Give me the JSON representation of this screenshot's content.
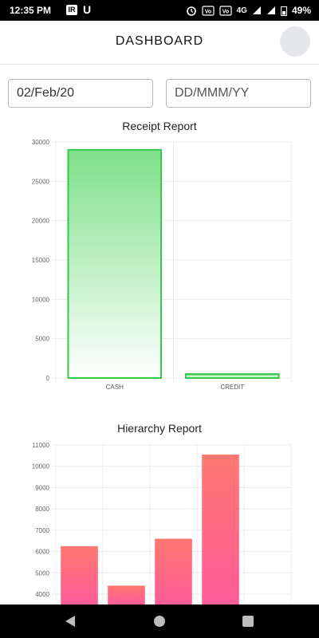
{
  "status_bar": {
    "time": "12:35 PM",
    "app_icon_1": "IR",
    "app_icon_2": "U",
    "indicators": [
      "alarm-icon",
      "vo-lte-1",
      "vo-lte-2",
      "4G",
      "signal",
      "signal"
    ],
    "battery": "49%"
  },
  "header": {
    "title": "DASHBOARD",
    "avatar": "avatar"
  },
  "filters": {
    "from_value": "02/Feb/20",
    "to_placeholder": "DD/MMM/YY"
  },
  "colors": {
    "receipt_bar_top": "#7ee08a",
    "receipt_bar_border": "#35c94a",
    "hierarchy_bar_top": "#ff7770",
    "hierarchy_bar_bottom": "#ff5c9a"
  },
  "chart_data": [
    {
      "type": "bar",
      "title": "Receipt Report",
      "categories": [
        "CASH",
        "CREDIT"
      ],
      "values": [
        29000,
        500
      ],
      "ylim": [
        0,
        30000
      ],
      "yticks": [
        0,
        5000,
        10000,
        15000,
        20000,
        25000,
        30000
      ],
      "grid": true,
      "xlabel": "",
      "ylabel": ""
    },
    {
      "type": "bar",
      "title": "Hierarchy Report",
      "categories": [
        "",
        "",
        "",
        "",
        ""
      ],
      "values": [
        6250,
        4400,
        6600,
        10550,
        null
      ],
      "ylim": [
        3850,
        11000
      ],
      "yticks": [
        4000,
        5000,
        6000,
        7000,
        8000,
        9000,
        10000,
        11000
      ],
      "grid": true,
      "xlabel": "",
      "ylabel": ""
    }
  ],
  "nav_bar": {
    "back": "back-icon",
    "home": "home-icon",
    "recents": "recents-icon"
  }
}
